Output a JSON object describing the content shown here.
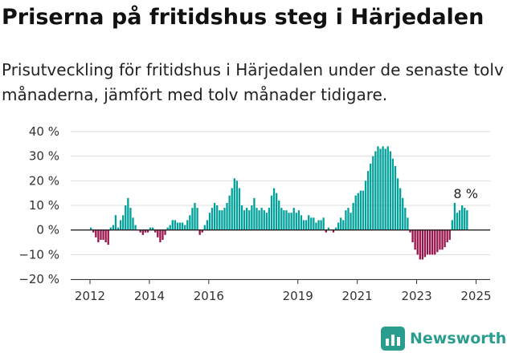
{
  "title": "Priserna på fritidshus steg i Härjedalen",
  "subtitle": "Prisutveckling för fritidshus i Härjedalen under de senaste tolv månaderna, jämfört med tolv månader tidigare.",
  "brand": "Newsworthy",
  "colors": {
    "positive": "#00a19a",
    "negative": "#99134b",
    "brand": "#2a9d8f"
  },
  "chart_data": {
    "type": "bar",
    "title": "Priserna på fritidshus steg i Härjedalen",
    "ylim": [
      -20,
      40
    ],
    "y_ticks": [
      -20,
      -10,
      0,
      10,
      20,
      30,
      40
    ],
    "y_tick_labels": [
      "−20 %",
      "−10 %",
      "0 %",
      "10 %",
      "20 %",
      "30 %",
      "40 %"
    ],
    "x_ticks": [
      "2012",
      "2014",
      "2016",
      "2019",
      "2021",
      "2023",
      "2025"
    ],
    "grid": true,
    "annotation": "8 %",
    "start": "2012-01",
    "frequency": "monthly",
    "values": [
      1,
      -1,
      -3,
      -5,
      -4,
      -4,
      -5,
      -6,
      1,
      2,
      6,
      1,
      4,
      6,
      10,
      13,
      9,
      5,
      2,
      0,
      -1,
      -2,
      -1,
      -1,
      1,
      1,
      -1,
      -3,
      -5,
      -4,
      -2,
      1,
      2,
      4,
      4,
      3,
      3,
      3,
      2,
      4,
      6,
      9,
      11,
      9,
      -2,
      -1,
      2,
      4,
      7,
      9,
      11,
      10,
      8,
      8,
      9,
      11,
      14,
      17,
      21,
      20,
      17,
      10,
      8,
      9,
      8,
      10,
      13,
      9,
      8,
      9,
      8,
      7,
      9,
      14,
      17,
      15,
      12,
      9,
      8,
      8,
      7,
      7,
      9,
      7,
      8,
      6,
      4,
      4,
      6,
      5,
      5,
      3,
      4,
      4,
      5,
      -1,
      1,
      0,
      -1,
      1,
      3,
      5,
      4,
      8,
      9,
      7,
      11,
      14,
      15,
      16,
      16,
      20,
      24,
      27,
      30,
      32,
      34,
      33,
      34,
      33,
      34,
      32,
      29,
      26,
      21,
      17,
      13,
      9,
      5,
      -1,
      -5,
      -8,
      -10,
      -12,
      -12,
      -11,
      -10,
      -10,
      -10,
      -10,
      -9,
      -8,
      -8,
      -7,
      -5,
      -4,
      4,
      11,
      7,
      8,
      10,
      9,
      8
    ]
  }
}
